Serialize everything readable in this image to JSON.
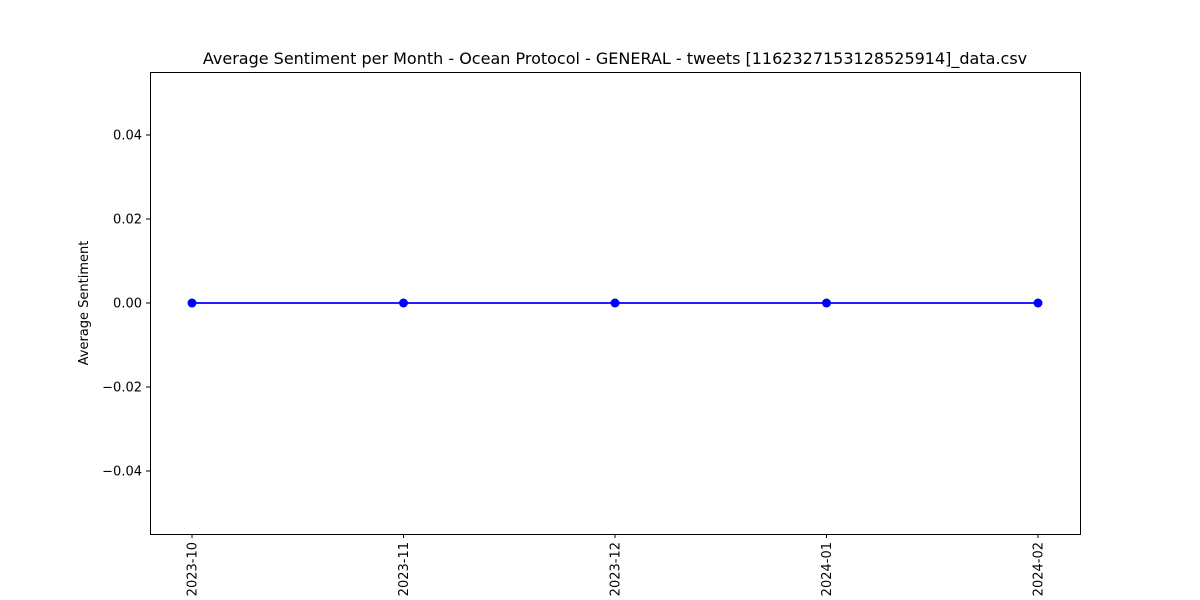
{
  "chart_data": {
    "type": "line",
    "title": "Average Sentiment per Month - Ocean Protocol - GENERAL - tweets [1162327153128525914]_data.csv",
    "xlabel": "",
    "ylabel": "Average Sentiment",
    "categories": [
      "2023-10",
      "2023-11",
      "2023-12",
      "2024-01",
      "2024-02"
    ],
    "series": [
      {
        "values": [
          0.0,
          0.0,
          0.0,
          0.0,
          0.0
        ]
      }
    ],
    "ylim": [
      -0.055,
      0.055
    ],
    "yticks": [
      -0.04,
      -0.02,
      0.0,
      0.02,
      0.04
    ],
    "ytick_labels": [
      "−0.04",
      "−0.02",
      "0.00",
      "0.02",
      "0.04"
    ],
    "grid": false,
    "legend": "none",
    "line_color": "#0000ff",
    "marker": "circle"
  }
}
